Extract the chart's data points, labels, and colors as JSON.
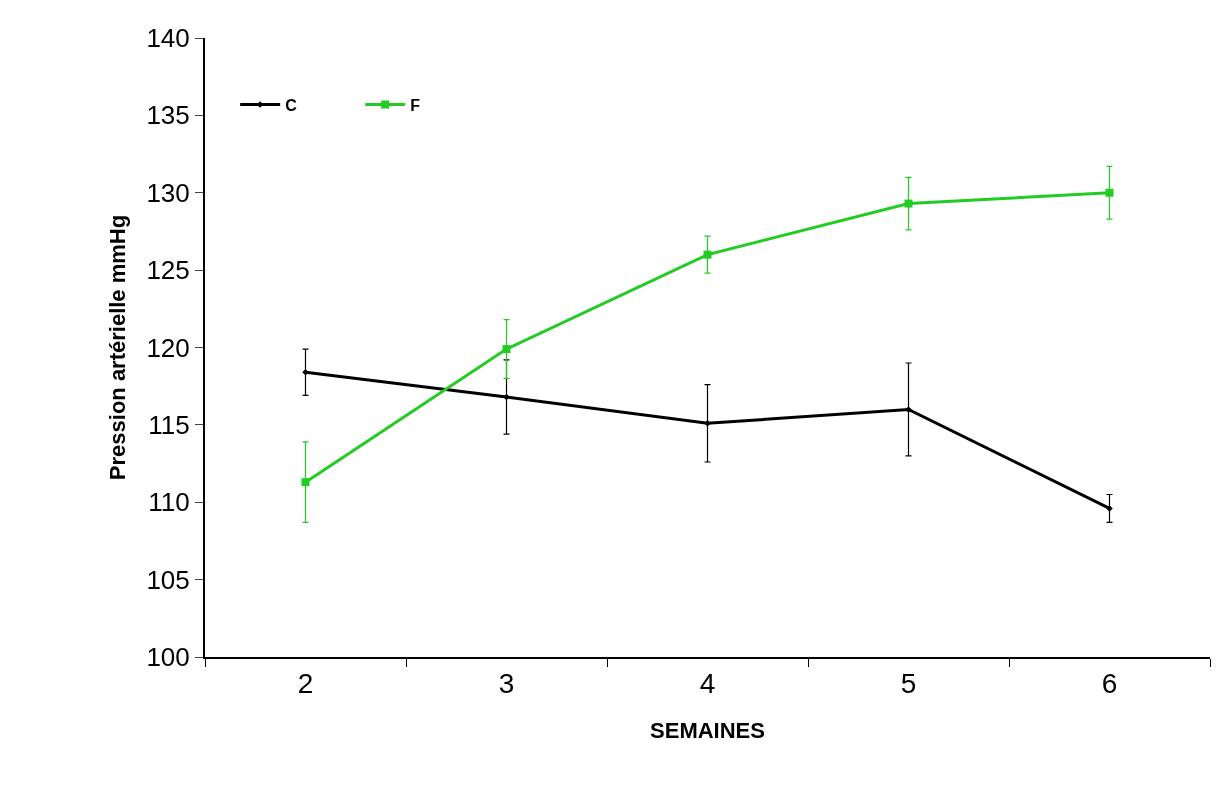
{
  "chart_data": {
    "type": "line",
    "xlabel": "SEMAINES",
    "ylabel": "Pression artérielle mmHg",
    "categories": [
      "2",
      "3",
      "4",
      "5",
      "6"
    ],
    "series": [
      {
        "name": "C",
        "color": "#000000",
        "marker": "diamond",
        "values": [
          118.4,
          116.8,
          115.1,
          116.0,
          109.6
        ],
        "errors": [
          1.5,
          2.4,
          2.5,
          3.0,
          0.9
        ]
      },
      {
        "name": "F",
        "color": "#22cc22",
        "marker": "square",
        "values": [
          111.3,
          119.9,
          126.0,
          129.3,
          130.0
        ],
        "errors": [
          2.6,
          1.9,
          1.2,
          1.7,
          1.7
        ]
      }
    ],
    "ylim": [
      100,
      140
    ],
    "yticks": [
      100,
      105,
      110,
      115,
      120,
      125,
      130,
      135,
      140
    ],
    "legend": "top left"
  }
}
